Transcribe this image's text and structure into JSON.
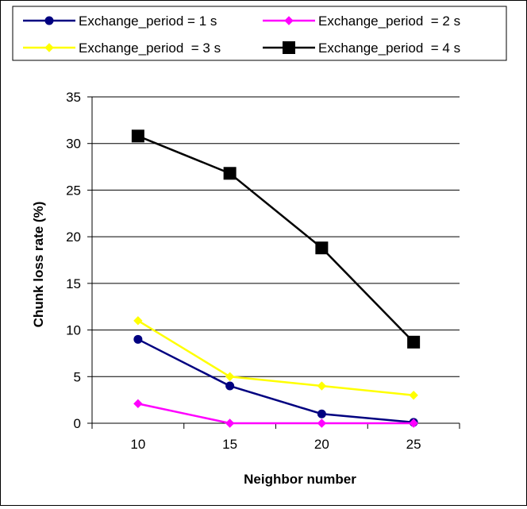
{
  "chart_data": {
    "type": "line",
    "xlabel": "Neighbor number",
    "ylabel": "Chunk loss rate (%)",
    "categories": [
      10,
      15,
      20,
      25
    ],
    "ylim": [
      0,
      35
    ],
    "yticks": [
      0,
      5,
      10,
      15,
      20,
      25,
      30,
      35
    ],
    "grid": "horizontal",
    "legend_position": "top",
    "series": [
      {
        "name": "Exchange_period = 1 s",
        "values": [
          9,
          4,
          1,
          0.1
        ],
        "color": "#000080",
        "marker": "circle"
      },
      {
        "name": "Exchange_period  = 2 s",
        "values": [
          2.1,
          0,
          0,
          0
        ],
        "color": "#ff00ff",
        "marker": "diamond"
      },
      {
        "name": "Exchange_period  = 3 s",
        "values": [
          11,
          5,
          4,
          3
        ],
        "color": "#ffff00",
        "marker": "diamond"
      },
      {
        "name": "Exchange_period  = 4 s",
        "values": [
          30.8,
          26.8,
          18.8,
          8.7
        ],
        "color": "#000000",
        "marker": "square"
      }
    ]
  }
}
